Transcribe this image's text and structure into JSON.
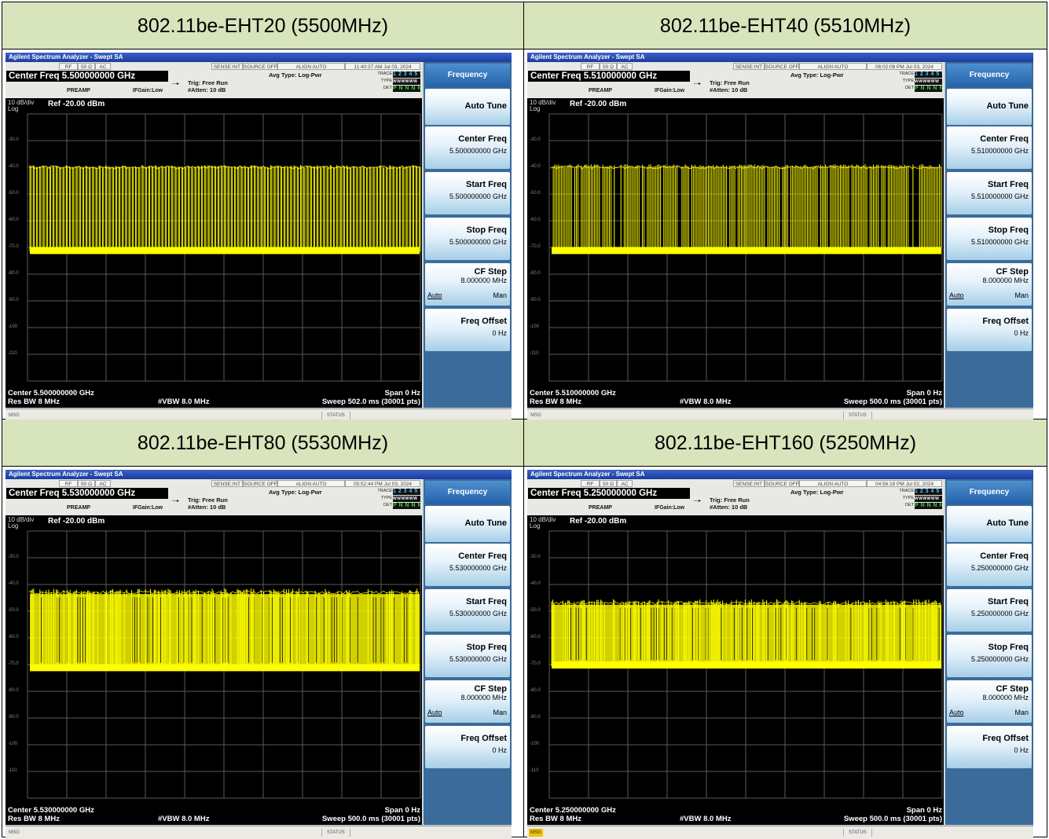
{
  "panels": [
    {
      "heading": "802.11be-EHT20 (5500MHz)",
      "app_title": "Agilent Spectrum Analyzer - Swept SA",
      "status_boxes": [
        "RF",
        "50 Ω",
        "AC",
        "SENSE:INT",
        "SOURCE OFF",
        "ALIGN AUTO",
        "11:40:37 AM Jul 03, 2024"
      ],
      "center_freq_display": "Center Freq 5.500000000 GHz",
      "avg_type": "Avg Type: Log-Pwr",
      "trig": "Trig: Free Run",
      "atten": "#Atten: 10 dB",
      "preamp": "PREAMP",
      "ifgain": "IFGain:Low",
      "trace_labels": {
        "trace": "TRACE",
        "type": "TYPE",
        "det": "DET",
        "trace_val": "1 2 3 4 5 6",
        "type_val": "WWWWWW",
        "det_val": "P N N N N N"
      },
      "scale": "10 dB/div",
      "log": "Log",
      "ref": "Ref -20.00 dBm",
      "y_ticks": [
        "-30.0",
        "-40.0",
        "-50.0",
        "-60.0",
        "-70.0",
        "-80.0",
        "-90.0",
        "-100",
        "-110"
      ],
      "bottom": {
        "center": "Center 5.500000000 GHz",
        "span": "Span 0 Hz",
        "rbw": "Res BW 8 MHz",
        "vbw": "#VBW 8.0 MHz",
        "sweep": "Sweep  502.0 ms (30001 pts)"
      },
      "menu": {
        "title": "Frequency",
        "auto_tune": "Auto Tune",
        "center_freq": "Center Freq",
        "center_freq_val": "5.500000000 GHz",
        "start_freq": "Start Freq",
        "start_freq_val": "5.500000000 GHz",
        "stop_freq": "Stop Freq",
        "stop_freq_val": "5.500000000 GHz",
        "cf_step": "CF Step",
        "cf_step_val": "8.000000 MHz",
        "auto": "Auto",
        "man": "Man",
        "freq_offset": "Freq Offset",
        "freq_offset_val": "0 Hz"
      },
      "msg": "MSG",
      "status": "STATUS",
      "msg_highlight": false,
      "trace_data": {
        "noise_floor_dbm": -71,
        "burst_top_dbm": -40,
        "burst_pattern": "dense-uniform"
      }
    },
    {
      "heading": "802.11be-EHT40 (5510MHz)",
      "app_title": "Agilent Spectrum Analyzer - Swept SA",
      "status_boxes": [
        "RF",
        "50 Ω",
        "AC",
        "SENSE:INT",
        "SOURCE OFF",
        "ALIGN AUTO",
        "06:02:08 PM Jul 03, 2024"
      ],
      "center_freq_display": "Center Freq 5.510000000 GHz",
      "avg_type": "Avg Type: Log-Pwr",
      "trig": "Trig: Free Run",
      "atten": "#Atten: 10 dB",
      "preamp": "PREAMP",
      "ifgain": "IFGain:Low",
      "trace_labels": {
        "trace": "TRACE",
        "type": "TYPE",
        "det": "DET",
        "trace_val": "1 2 3 4 5 6",
        "type_val": "WWWWWW",
        "det_val": "P N N N N N"
      },
      "scale": "10 dB/div",
      "log": "Log",
      "ref": "Ref -20.00 dBm",
      "y_ticks": [
        "-30.0",
        "-40.0",
        "-50.0",
        "-60.0",
        "-70.0",
        "-80.0",
        "-90.0",
        "-100",
        "-110"
      ],
      "bottom": {
        "center": "Center 5.510000000 GHz",
        "span": "Span 0 Hz",
        "rbw": "Res BW 8 MHz",
        "vbw": "#VBW 8.0 MHz",
        "sweep": "Sweep  500.0 ms (30001 pts)"
      },
      "menu": {
        "title": "Frequency",
        "auto_tune": "Auto Tune",
        "center_freq": "Center Freq",
        "center_freq_val": "5.510000000 GHz",
        "start_freq": "Start Freq",
        "start_freq_val": "5.510000000 GHz",
        "stop_freq": "Stop Freq",
        "stop_freq_val": "5.510000000 GHz",
        "cf_step": "CF Step",
        "cf_step_val": "8.000000 MHz",
        "auto": "Auto",
        "man": "Man",
        "freq_offset": "Freq Offset",
        "freq_offset_val": "0 Hz"
      },
      "msg": "MSG",
      "status": "STATUS",
      "msg_highlight": false,
      "trace_data": {
        "noise_floor_dbm": -71,
        "burst_top_dbm": -40,
        "burst_pattern": "dense-mixed"
      }
    },
    {
      "heading": "802.11be-EHT80 (5530MHz)",
      "app_title": "Agilent Spectrum Analyzer - Swept SA",
      "status_boxes": [
        "RF",
        "50 Ω",
        "AC",
        "SENSE:INT",
        "SOURCE OFF",
        "ALIGN AUTO",
        "05:52:44 PM Jul 03, 2024"
      ],
      "center_freq_display": "Center Freq 5.530000000 GHz",
      "avg_type": "Avg Type: Log-Pwr",
      "trig": "Trig: Free Run",
      "atten": "#Atten: 10 dB",
      "preamp": "PREAMP",
      "ifgain": "IFGain:Low",
      "trace_labels": {
        "trace": "TRACE",
        "type": "TYPE",
        "det": "DET",
        "trace_val": "1 2 3 4 5 6",
        "type_val": "WWWWWW",
        "det_val": "P N N N N N"
      },
      "scale": "10 dB/div",
      "log": "Log",
      "ref": "Ref -20.00 dBm",
      "y_ticks": [
        "-30.0",
        "-40.0",
        "-50.0",
        "-60.0",
        "-70.0",
        "-80.0",
        "-90.0",
        "-100",
        "-110"
      ],
      "bottom": {
        "center": "Center 5.530000000 GHz",
        "span": "Span 0 Hz",
        "rbw": "Res BW 8 MHz",
        "vbw": "#VBW 8.0 MHz",
        "sweep": "Sweep  500.0 ms (30001 pts)"
      },
      "menu": {
        "title": "Frequency",
        "auto_tune": "Auto Tune",
        "center_freq": "Center Freq",
        "center_freq_val": "5.530000000 GHz",
        "start_freq": "Start Freq",
        "start_freq_val": "5.530000000 GHz",
        "stop_freq": "Stop Freq",
        "stop_freq_val": "5.530000000 GHz",
        "cf_step": "CF Step",
        "cf_step_val": "8.000000 MHz",
        "auto": "Auto",
        "man": "Man",
        "freq_offset": "Freq Offset",
        "freq_offset_val": "0 Hz"
      },
      "msg": "MSG",
      "status": "STATUS",
      "msg_highlight": false,
      "trace_data": {
        "noise_floor_dbm": -71,
        "burst_top_dbm": -43,
        "burst_pattern": "dense-filled"
      }
    },
    {
      "heading": "802.11be-EHT160 (5250MHz)",
      "app_title": "Agilent Spectrum Analyzer - Swept SA",
      "status_boxes": [
        "RF",
        "50 Ω",
        "AC",
        "SENSE:INT",
        "SOURCE OFF",
        "ALIGN AUTO",
        "04:56:18 PM Jul 02, 2024"
      ],
      "center_freq_display": "Center Freq 5.250000000 GHz",
      "avg_type": "Avg Type: Log-Pwr",
      "trig": "Trig: Free Run",
      "atten": "#Atten: 10 dB",
      "preamp": "PREAMP",
      "ifgain": "IFGain:Low",
      "trace_labels": {
        "trace": "TRACE",
        "type": "TYPE",
        "det": "DET",
        "trace_val": "1 2 3 4 5 6",
        "type_val": "WWWWWW",
        "det_val": "P N N N N N"
      },
      "scale": "10 dB/div",
      "log": "Log",
      "ref": "Ref -20.00 dBm",
      "y_ticks": [
        "-30.0",
        "-40.0",
        "-50.0",
        "-60.0",
        "-70.0",
        "-80.0",
        "-90.0",
        "-100",
        "-110"
      ],
      "bottom": {
        "center": "Center 5.250000000 GHz",
        "span": "Span 0 Hz",
        "rbw": "Res BW 8 MHz",
        "vbw": "#VBW 8.0 MHz",
        "sweep": "Sweep  500.0 ms (30001 pts)"
      },
      "menu": {
        "title": "Frequency",
        "auto_tune": "Auto Tune",
        "center_freq": "Center Freq",
        "center_freq_val": "5.250000000 GHz",
        "start_freq": "Start Freq",
        "start_freq_val": "5.250000000 GHz",
        "stop_freq": "Stop Freq",
        "stop_freq_val": "5.250000000 GHz",
        "cf_step": "CF Step",
        "cf_step_val": "8.000000 MHz",
        "auto": "Auto",
        "man": "Man",
        "freq_offset": "Freq Offset",
        "freq_offset_val": "0 Hz"
      },
      "msg": "MSG",
      "status": "STATUS",
      "msg_highlight": true,
      "trace_data": {
        "noise_floor_dbm": -70,
        "burst_top_dbm": -47,
        "burst_pattern": "dense-filled-flat"
      }
    }
  ],
  "colors": {
    "header_bg": "#d7e4bc",
    "trace": "#ffff00",
    "plot_bg": "#000000",
    "menu_bg": "#3b6b9a",
    "title_bar": "#1b3c9c",
    "msg_highlight": "#f2c200"
  }
}
